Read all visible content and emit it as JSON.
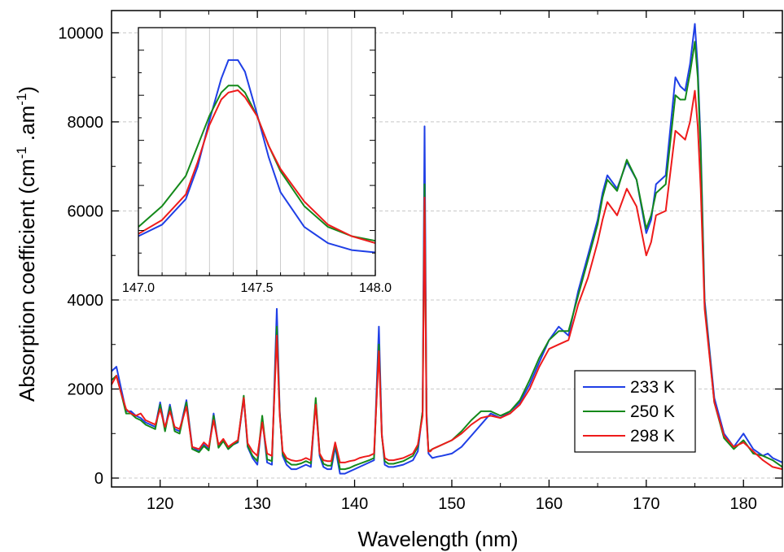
{
  "chart_data": [
    {
      "id": "main",
      "type": "line",
      "title": "",
      "xlabel": "Wavelength (nm)",
      "ylabel": {
        "pre": "Absorption coefficient (cm",
        "sup1": "-1",
        "mid": " .am",
        "sup2": "-1",
        "post": ")"
      },
      "xlim": [
        115,
        184
      ],
      "ylim": [
        -200,
        10500
      ],
      "xticks": [
        120,
        130,
        140,
        150,
        160,
        170,
        180
      ],
      "xtick_labels": [
        "120",
        "130",
        "140",
        "150",
        "160",
        "170",
        "180"
      ],
      "yticks": [
        0,
        2000,
        4000,
        6000,
        8000,
        10000
      ],
      "ytick_labels": [
        "0",
        "2000",
        "4000",
        "6000",
        "8000",
        "10000"
      ],
      "grid": "horizontal dashed",
      "legend": {
        "position": "lower-right"
      },
      "series": [
        {
          "name": "233 K",
          "color": "#1f3fe6",
          "x": [
            115,
            115.5,
            116,
            116.5,
            117,
            117.5,
            118,
            118.5,
            119,
            119.5,
            120,
            120.5,
            121,
            121.5,
            122,
            122.7,
            123.3,
            124,
            124.5,
            125,
            125.5,
            126,
            126.5,
            127,
            127.5,
            128,
            128.6,
            129,
            129.5,
            130,
            130.5,
            131,
            131.5,
            132,
            132.3,
            132.6,
            133,
            133.5,
            134,
            134.5,
            135,
            135.5,
            136,
            136.4,
            136.8,
            137.2,
            137.6,
            138,
            138.5,
            139,
            139.5,
            140,
            140.5,
            141,
            141.5,
            142,
            142.5,
            142.8,
            143.1,
            143.5,
            144,
            145,
            146,
            146.5,
            147,
            147.2,
            147.4,
            147.6,
            147.8,
            148,
            148.5,
            149,
            150,
            151,
            152,
            153,
            154,
            155,
            156,
            157,
            158,
            159,
            160,
            161,
            162,
            163,
            164,
            165,
            165.5,
            166,
            167,
            168,
            169,
            170,
            170.5,
            171,
            172,
            173,
            173.5,
            174,
            174.5,
            175,
            175.3,
            175.6,
            176,
            177,
            178,
            179,
            180,
            181,
            182,
            182.5,
            183,
            184
          ],
          "y": [
            2400,
            2500,
            2000,
            1500,
            1500,
            1400,
            1350,
            1250,
            1200,
            1150,
            1700,
            1100,
            1650,
            1100,
            1050,
            1750,
            700,
            600,
            750,
            650,
            1450,
            700,
            850,
            650,
            750,
            800,
            1800,
            700,
            450,
            300,
            1350,
            350,
            300,
            3800,
            1500,
            500,
            300,
            200,
            200,
            250,
            300,
            250,
            1750,
            500,
            250,
            200,
            200,
            700,
            100,
            100,
            150,
            200,
            250,
            300,
            350,
            400,
            3400,
            1000,
            300,
            250,
            250,
            300,
            400,
            600,
            1500,
            7900,
            1500,
            550,
            500,
            450,
            480,
            500,
            550,
            700,
            950,
            1200,
            1450,
            1350,
            1500,
            1700,
            2100,
            2600,
            3100,
            3400,
            3200,
            4200,
            5000,
            5800,
            6400,
            6800,
            6500,
            7100,
            6700,
            5500,
            5800,
            6600,
            6800,
            9000,
            8800,
            8700,
            9300,
            10200,
            9200,
            7500,
            4000,
            1800,
            1000,
            700,
            1000,
            650,
            500,
            550,
            450,
            350
          ]
        },
        {
          "name": "250 K",
          "color": "#14891a",
          "x": [
            115,
            115.5,
            116,
            116.5,
            117,
            117.5,
            118,
            118.5,
            119,
            119.5,
            120,
            120.5,
            121,
            121.5,
            122,
            122.7,
            123.3,
            124,
            124.5,
            125,
            125.5,
            126,
            126.5,
            127,
            127.5,
            128,
            128.6,
            129,
            129.5,
            130,
            130.5,
            131,
            131.5,
            132,
            132.3,
            132.6,
            133,
            133.5,
            134,
            134.5,
            135,
            135.5,
            136,
            136.4,
            136.8,
            137.2,
            137.6,
            138,
            138.5,
            139,
            139.5,
            140,
            140.5,
            141,
            141.5,
            142,
            142.5,
            142.8,
            143.1,
            143.5,
            144,
            145,
            146,
            146.5,
            147,
            147.2,
            147.4,
            147.6,
            147.8,
            148,
            148.5,
            149,
            150,
            151,
            152,
            153,
            154,
            155,
            156,
            157,
            158,
            159,
            160,
            161,
            162,
            163,
            164,
            165,
            165.5,
            166,
            167,
            168,
            169,
            170,
            170.5,
            171,
            172,
            173,
            173.5,
            174,
            174.5,
            175,
            175.3,
            175.6,
            176,
            177,
            178,
            179,
            180,
            181,
            182,
            183,
            184
          ],
          "y": [
            2200,
            2300,
            1900,
            1450,
            1450,
            1350,
            1300,
            1200,
            1150,
            1100,
            1650,
            1050,
            1600,
            1050,
            1000,
            1700,
            650,
            580,
            720,
            620,
            1400,
            680,
            830,
            650,
            750,
            820,
            1850,
            720,
            500,
            380,
            1400,
            420,
            380,
            3400,
            1450,
            550,
            380,
            300,
            300,
            330,
            380,
            330,
            1800,
            550,
            320,
            280,
            280,
            780,
            200,
            200,
            230,
            280,
            320,
            360,
            400,
            450,
            3000,
            950,
            380,
            320,
            320,
            380,
            500,
            700,
            1500,
            6600,
            1400,
            600,
            620,
            650,
            700,
            750,
            850,
            1050,
            1300,
            1500,
            1500,
            1400,
            1500,
            1750,
            2200,
            2700,
            3100,
            3300,
            3300,
            4100,
            4900,
            5700,
            6300,
            6700,
            6450,
            7150,
            6700,
            5600,
            5900,
            6400,
            6600,
            8600,
            8500,
            8500,
            9100,
            9800,
            9000,
            7300,
            3900,
            1700,
            900,
            650,
            850,
            550,
            500,
            400,
            250
          ]
        },
        {
          "name": "298 K",
          "color": "#ee1b1b",
          "x": [
            115,
            115.5,
            116,
            116.5,
            117,
            117.5,
            118,
            118.5,
            119,
            119.5,
            120,
            120.5,
            121,
            121.5,
            122,
            122.7,
            123.3,
            124,
            124.5,
            125,
            125.5,
            126,
            126.5,
            127,
            127.5,
            128,
            128.6,
            129,
            129.5,
            130,
            130.5,
            131,
            131.5,
            132,
            132.3,
            132.6,
            133,
            133.5,
            134,
            134.5,
            135,
            135.5,
            136,
            136.4,
            136.8,
            137.2,
            137.6,
            138,
            138.5,
            139,
            139.5,
            140,
            140.5,
            141,
            141.5,
            142,
            142.5,
            142.8,
            143.1,
            143.5,
            144,
            145,
            146,
            146.5,
            147,
            147.2,
            147.4,
            147.6,
            147.8,
            148,
            148.5,
            149,
            150,
            151,
            152,
            153,
            154,
            155,
            156,
            157,
            158,
            159,
            160,
            161,
            162,
            163,
            164,
            165,
            165.5,
            166,
            167,
            168,
            169,
            170,
            170.5,
            171,
            172,
            173,
            173.5,
            174,
            174.5,
            175,
            175.3,
            175.6,
            176,
            177,
            178,
            179,
            180,
            181,
            182,
            183,
            184
          ],
          "y": [
            2100,
            2300,
            1900,
            1550,
            1450,
            1400,
            1450,
            1300,
            1250,
            1200,
            1550,
            1150,
            1500,
            1150,
            1100,
            1600,
            700,
            650,
            800,
            700,
            1300,
            750,
            880,
            700,
            780,
            850,
            1800,
            780,
            600,
            500,
            1250,
            550,
            500,
            3200,
            1400,
            600,
            450,
            400,
            380,
            400,
            450,
            400,
            1650,
            550,
            400,
            380,
            380,
            800,
            350,
            350,
            380,
            400,
            450,
            480,
            500,
            550,
            2850,
            950,
            450,
            400,
            400,
            450,
            550,
            750,
            1400,
            6300,
            1300,
            600,
            600,
            650,
            700,
            750,
            850,
            1000,
            1200,
            1350,
            1400,
            1350,
            1450,
            1650,
            2000,
            2500,
            2900,
            3000,
            3100,
            3900,
            4500,
            5300,
            5800,
            6200,
            5900,
            6500,
            6100,
            5000,
            5300,
            5900,
            6000,
            7800,
            7700,
            7600,
            8000,
            8700,
            7900,
            6500,
            3800,
            1700,
            950,
            700,
            800,
            600,
            400,
            250,
            200
          ]
        }
      ]
    },
    {
      "id": "inset",
      "type": "line",
      "title": "",
      "xlabel": "",
      "ylabel": "",
      "xlim": [
        147.0,
        148.0
      ],
      "ylim": [
        -200,
        10500
      ],
      "xticks": [
        147.0,
        147.5,
        148.0
      ],
      "xtick_labels": [
        "147.0",
        "147.5",
        "148.0"
      ],
      "grid": "vertical dotted",
      "series": [
        {
          "name": "233 K",
          "color": "#1f3fe6",
          "x": [
            147.0,
            147.1,
            147.2,
            147.25,
            147.3,
            147.35,
            147.38,
            147.42,
            147.45,
            147.5,
            147.55,
            147.6,
            147.7,
            147.8,
            147.9,
            148.0
          ],
          "y": [
            1500,
            2000,
            3100,
            4500,
            6500,
            8300,
            9100,
            9100,
            8600,
            6800,
            4900,
            3400,
            1900,
            1200,
            900,
            800
          ]
        },
        {
          "name": "250 K",
          "color": "#14891a",
          "x": [
            147.0,
            147.1,
            147.2,
            147.25,
            147.3,
            147.35,
            147.38,
            147.42,
            147.45,
            147.5,
            147.55,
            147.6,
            147.7,
            147.8,
            147.9,
            148.0
          ],
          "y": [
            1900,
            2800,
            4100,
            5400,
            6700,
            7700,
            8000,
            8000,
            7700,
            6700,
            5400,
            4300,
            2800,
            1900,
            1500,
            1300
          ]
        },
        {
          "name": "298 K",
          "color": "#ee1b1b",
          "x": [
            147.0,
            147.1,
            147.2,
            147.25,
            147.3,
            147.35,
            147.38,
            147.42,
            147.45,
            147.5,
            147.55,
            147.6,
            147.7,
            147.8,
            147.9,
            148.0
          ],
          "y": [
            1600,
            2200,
            3300,
            4700,
            6300,
            7400,
            7700,
            7800,
            7500,
            6700,
            5400,
            4400,
            3000,
            2000,
            1500,
            1200
          ]
        }
      ]
    }
  ]
}
